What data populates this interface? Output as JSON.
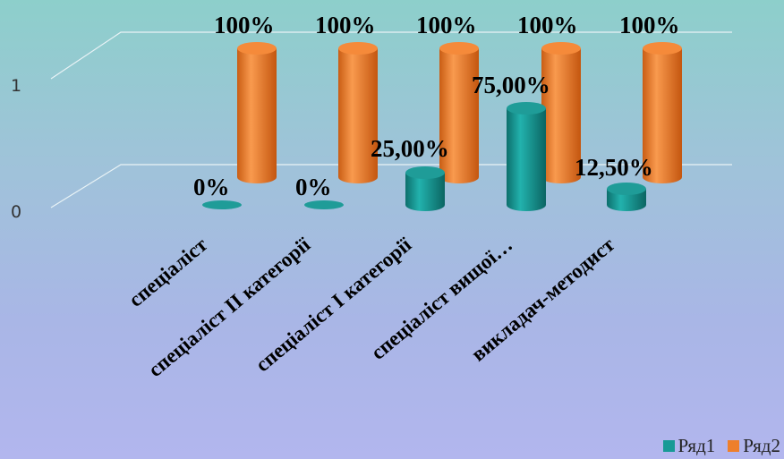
{
  "chart_data": {
    "type": "bar",
    "categories": [
      "спеціаліст",
      "спеціаліст II категорії",
      "спеціаліст I категорії",
      "спеціаліст вищої…",
      "викладач-методист"
    ],
    "series": [
      {
        "name": "Ряд1",
        "values": [
          0,
          0,
          0.25,
          0.75,
          0.125
        ],
        "labels": [
          "0%",
          "0%",
          "25,00%",
          "75,00%",
          "12,50%"
        ],
        "color": "#179a96"
      },
      {
        "name": "Ряд2",
        "values": [
          1,
          1,
          1,
          1,
          1
        ],
        "labels": [
          "100%",
          "100%",
          "100%",
          "100%",
          "100%"
        ],
        "color": "#ee7f2b"
      }
    ],
    "y_ticks": [
      "0",
      "1"
    ],
    "ylim": [
      0,
      1
    ],
    "grid": true,
    "legend_position": "bottom-right"
  }
}
